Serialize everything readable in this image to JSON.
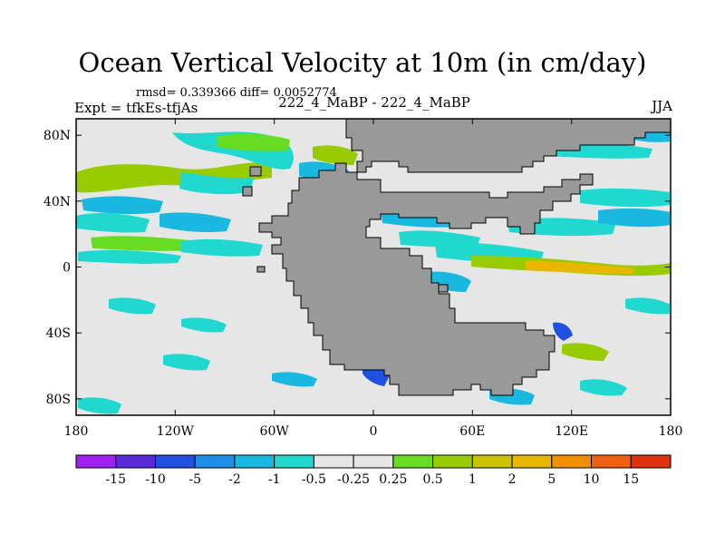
{
  "header": {
    "title": "Ocean Vertical Velocity at 10m (in cm/day)",
    "stats": "rmsd= 0.339366 diff= 0.0052774",
    "expt": "Expt = tfkEs-tfjAs",
    "case": "222_4_MaBP - 222_4_MaBP",
    "season": "JJA"
  },
  "map": {
    "projection": "cylindrical equidistant",
    "lon_range": [
      -180,
      180
    ],
    "lat_range": [
      -90,
      90
    ],
    "land_color": "#999999",
    "neutral_color": "#e6e6e6",
    "x_ticks": [
      {
        "lon": -180,
        "label": "180"
      },
      {
        "lon": -120,
        "label": "120W"
      },
      {
        "lon": -60,
        "label": "60W"
      },
      {
        "lon": 0,
        "label": "0"
      },
      {
        "lon": 60,
        "label": "60E"
      },
      {
        "lon": 120,
        "label": "120E"
      },
      {
        "lon": 180,
        "label": "180"
      }
    ],
    "y_ticks": [
      {
        "lat": 80,
        "label": "80N"
      },
      {
        "lat": 40,
        "label": "40N"
      },
      {
        "lat": 0,
        "label": "0"
      },
      {
        "lat": -40,
        "label": "40S"
      },
      {
        "lat": -80,
        "label": "80S"
      }
    ]
  },
  "colorbar": {
    "colors": [
      "#a020f0",
      "#5a2ad8",
      "#2050e0",
      "#1e8ee8",
      "#18b8e0",
      "#20d8d0",
      "#e6e6e6",
      "#e6e6e6",
      "#66dd22",
      "#99cc00",
      "#c8c400",
      "#e8b800",
      "#f09000",
      "#f06010",
      "#e03010"
    ],
    "labels": [
      "-15",
      "-10",
      "-5",
      "-2",
      "-1",
      "-0.5",
      "-0.25",
      "0.25",
      "0.5",
      "1",
      "2",
      "5",
      "10",
      "15"
    ]
  }
}
